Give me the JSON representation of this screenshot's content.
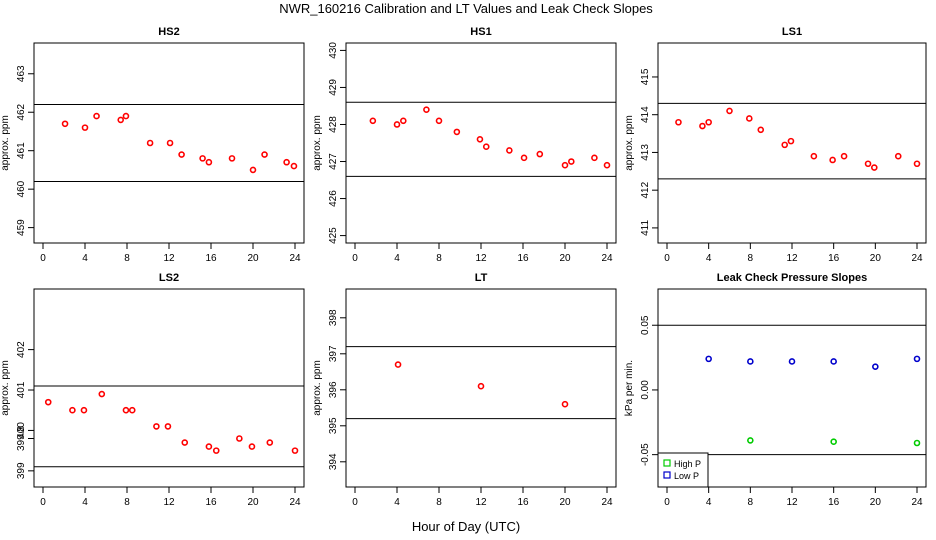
{
  "figure": {
    "title": "NWR_160216  Calibration and LT Values and Leak Check Slopes",
    "xlabel": "Hour of Day (UTC)"
  },
  "chart_data": [
    {
      "id": "hs2",
      "type": "scatter",
      "title": "HS2",
      "ylabel": "approx. ppm",
      "xlim": [
        0,
        24
      ],
      "ylim": [
        458.6,
        463.8
      ],
      "xticks": [
        0,
        4,
        8,
        12,
        16,
        20,
        24
      ],
      "yticks": [
        459,
        460,
        461,
        462,
        463
      ],
      "hlines": [
        462.2,
        460.2
      ],
      "series": [
        {
          "color": "#ff0000",
          "x": [
            2.1,
            4.0,
            5.1,
            7.4,
            7.9,
            10.2,
            12.1,
            13.2,
            15.2,
            15.8,
            18.0,
            20.0,
            21.1,
            23.2,
            23.9
          ],
          "y": [
            461.7,
            461.6,
            461.9,
            461.8,
            461.9,
            461.2,
            461.2,
            460.9,
            460.8,
            460.7,
            460.8,
            460.5,
            460.9,
            460.7,
            460.6
          ]
        }
      ]
    },
    {
      "id": "hs1",
      "type": "scatter",
      "title": "HS1",
      "ylabel": "approx. ppm",
      "xlim": [
        0,
        24
      ],
      "ylim": [
        424.8,
        430.2
      ],
      "xticks": [
        0,
        4,
        8,
        12,
        16,
        20,
        24
      ],
      "yticks": [
        425,
        426,
        427,
        428,
        429,
        430
      ],
      "hlines": [
        428.6,
        426.6
      ],
      "series": [
        {
          "color": "#ff0000",
          "x": [
            1.7,
            4.0,
            4.6,
            6.8,
            8.0,
            9.7,
            11.9,
            12.5,
            14.7,
            16.1,
            17.6,
            20.0,
            20.6,
            22.8,
            24.0
          ],
          "y": [
            428.1,
            428.0,
            428.1,
            428.4,
            428.1,
            427.8,
            427.6,
            427.4,
            427.3,
            427.1,
            427.2,
            426.9,
            427.0,
            427.1,
            426.9
          ]
        }
      ]
    },
    {
      "id": "ls1",
      "type": "scatter",
      "title": "LS1",
      "ylabel": "approx. ppm",
      "xlim": [
        0,
        24
      ],
      "ylim": [
        410.6,
        415.9
      ],
      "xticks": [
        0,
        4,
        8,
        12,
        16,
        20,
        24
      ],
      "yticks": [
        411,
        412,
        413,
        414,
        415
      ],
      "hlines": [
        414.3,
        412.3
      ],
      "series": [
        {
          "color": "#ff0000",
          "x": [
            1.1,
            3.4,
            4.0,
            6.0,
            7.9,
            9.0,
            11.3,
            11.9,
            14.1,
            15.9,
            17.0,
            19.3,
            19.9,
            22.2,
            24.0
          ],
          "y": [
            413.8,
            413.7,
            413.8,
            414.1,
            413.9,
            413.6,
            413.2,
            413.3,
            412.9,
            412.8,
            412.9,
            412.7,
            412.6,
            412.9,
            412.7
          ]
        }
      ]
    },
    {
      "id": "ls2",
      "type": "scatter",
      "title": "LS2",
      "ylabel": "approx. ppm",
      "xlim": [
        0,
        24
      ],
      "ylim": [
        398.6,
        403.5
      ],
      "xticks": [
        0,
        4,
        8,
        12,
        16,
        20,
        24
      ],
      "yticks": [
        399,
        399.8,
        400,
        401,
        402
      ],
      "yticklabels": [
        "399",
        "399.8",
        "400",
        "401",
        "402"
      ],
      "hlines": [
        401.1,
        399.1
      ],
      "series": [
        {
          "color": "#ff0000",
          "x": [
            0.5,
            2.8,
            3.9,
            5.6,
            7.9,
            8.5,
            10.8,
            11.9,
            13.5,
            15.8,
            16.5,
            18.7,
            19.9,
            21.6,
            24.0
          ],
          "y": [
            400.7,
            400.5,
            400.5,
            400.9,
            400.5,
            400.5,
            400.1,
            400.1,
            399.7,
            399.6,
            399.5,
            399.8,
            399.6,
            399.7,
            399.5
          ]
        }
      ]
    },
    {
      "id": "lt",
      "type": "scatter",
      "title": "LT",
      "ylabel": "approx. ppm",
      "xlim": [
        0,
        24
      ],
      "ylim": [
        393.3,
        398.8
      ],
      "xticks": [
        0,
        4,
        8,
        12,
        16,
        20,
        24
      ],
      "yticks": [
        394,
        395,
        396,
        397,
        398
      ],
      "hlines": [
        397.2,
        395.2
      ],
      "series": [
        {
          "color": "#ff0000",
          "x": [
            4.1,
            12.0,
            20.0
          ],
          "y": [
            396.7,
            396.1,
            395.6
          ]
        }
      ]
    },
    {
      "id": "leak",
      "type": "scatter",
      "title": "Leak Check Pressure Slopes",
      "ylabel": "kPa per min.",
      "xlim": [
        0,
        24
      ],
      "ylim": [
        -0.075,
        0.078
      ],
      "xticks": [
        0,
        4,
        8,
        12,
        16,
        20,
        24
      ],
      "yticks": [
        -0.05,
        0.0,
        0.05
      ],
      "yticklabels": [
        "-0.05",
        "0.00",
        "0.05"
      ],
      "hlines": [
        0.05,
        -0.05
      ],
      "legend": {
        "position": "bottom-left",
        "entries": [
          "High P",
          "Low P"
        ]
      },
      "series": [
        {
          "name": "High P",
          "color": "#00cc00",
          "x": [
            8.0,
            16.0,
            24.0
          ],
          "y": [
            -0.039,
            -0.04,
            -0.041
          ]
        },
        {
          "name": "Low P",
          "color": "#0000cc",
          "x": [
            4.0,
            8.0,
            12.0,
            16.0,
            20.0,
            24.0
          ],
          "y": [
            0.024,
            0.022,
            0.022,
            0.022,
            0.018,
            0.024
          ]
        }
      ]
    }
  ]
}
